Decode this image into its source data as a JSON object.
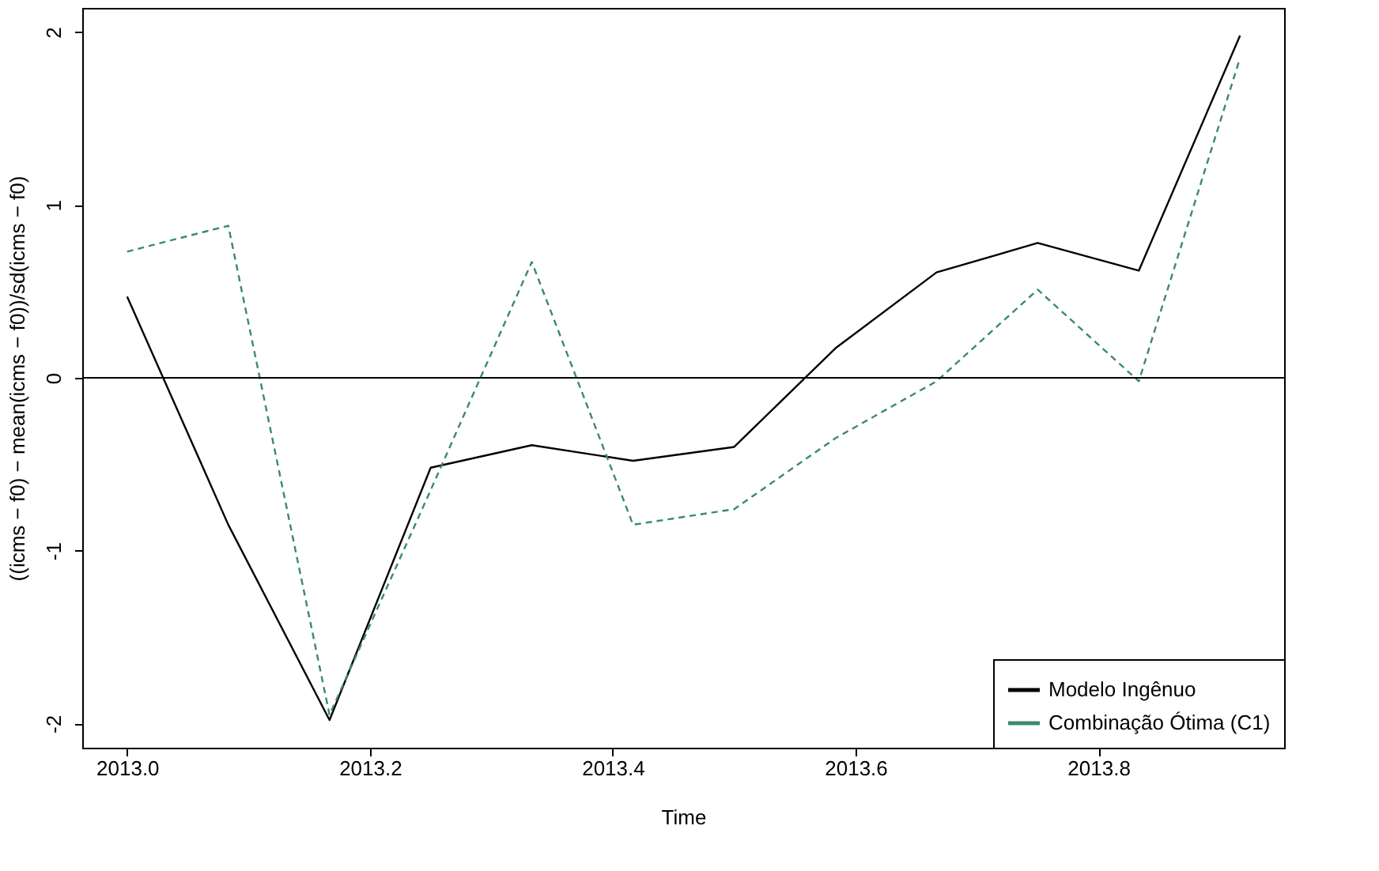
{
  "chart_data": {
    "type": "line",
    "xlabel": "Time",
    "ylabel": "((icms − f0) − mean(icms − f0))/sd(icms − f0)",
    "x": [
      2013.0,
      2013.0833,
      2013.1667,
      2013.25,
      2013.3333,
      2013.4167,
      2013.5,
      2013.5833,
      2013.6667,
      2013.75,
      2013.8333,
      2013.9167
    ],
    "series": [
      {
        "name": "Modelo Ingênuo",
        "color": "#000000",
        "line_style": "solid",
        "values": [
          0.47,
          -0.85,
          -1.98,
          -0.52,
          -0.39,
          -0.48,
          -0.4,
          0.17,
          0.61,
          0.78,
          0.62,
          1.98
        ]
      },
      {
        "name": "Combinação Ótima (C1)",
        "color": "#3a8a6e",
        "line_style": "dashed",
        "values": [
          0.73,
          0.88,
          -1.95,
          -0.65,
          0.67,
          -0.85,
          -0.76,
          -0.35,
          -0.02,
          0.51,
          -0.02,
          1.85
        ]
      }
    ],
    "xlim": [
      2012.963,
      2013.953
    ],
    "xticks": [
      {
        "value": 2013,
        "label": "2013.0"
      },
      2013.2,
      2013.4,
      2013.6,
      2013.8
    ],
    "ylim": [
      -2.14,
      2.14
    ],
    "yticks": [
      -2,
      -1,
      0,
      1,
      2
    ],
    "ref_lines": [
      {
        "axis": "y",
        "value": 0,
        "color": "#000000",
        "line_style": "solid"
      }
    ],
    "grid": false,
    "legend": "bottom right",
    "marker": "none"
  }
}
